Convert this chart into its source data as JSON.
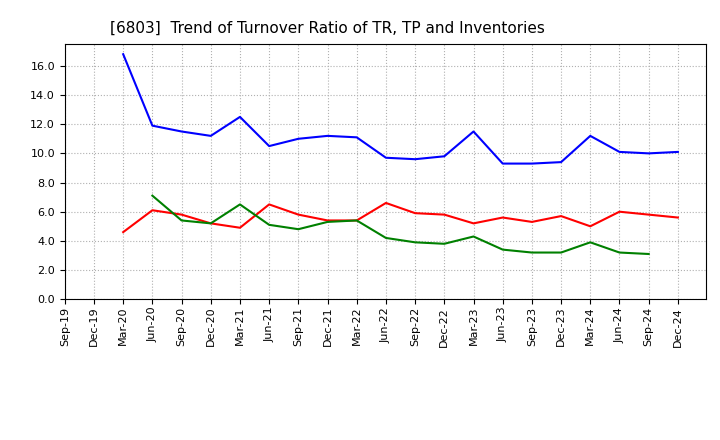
{
  "title": "[6803]  Trend of Turnover Ratio of TR, TP and Inventories",
  "xlabel_labels": [
    "Sep-19",
    "Dec-19",
    "Mar-20",
    "Jun-20",
    "Sep-20",
    "Dec-20",
    "Mar-21",
    "Jun-21",
    "Sep-21",
    "Dec-21",
    "Mar-22",
    "Jun-22",
    "Sep-22",
    "Dec-22",
    "Mar-23",
    "Jun-23",
    "Sep-23",
    "Dec-23",
    "Mar-24",
    "Jun-24",
    "Sep-24",
    "Dec-24"
  ],
  "ylim": [
    0.0,
    17.5
  ],
  "yticks": [
    0.0,
    2.0,
    4.0,
    6.0,
    8.0,
    10.0,
    12.0,
    14.0,
    16.0
  ],
  "trade_receivables": [
    null,
    null,
    4.6,
    6.1,
    5.8,
    5.2,
    4.9,
    6.5,
    5.8,
    5.4,
    5.4,
    6.6,
    5.9,
    5.8,
    5.2,
    5.6,
    5.3,
    5.7,
    5.0,
    6.0,
    5.8,
    5.6
  ],
  "trade_payables": [
    null,
    null,
    16.8,
    11.9,
    11.5,
    11.2,
    12.5,
    10.5,
    11.0,
    11.2,
    11.1,
    9.7,
    9.6,
    9.8,
    11.5,
    9.3,
    9.3,
    9.4,
    11.2,
    10.1,
    10.0,
    10.1
  ],
  "inventories": [
    null,
    null,
    null,
    7.1,
    5.4,
    5.2,
    6.5,
    5.1,
    4.8,
    5.3,
    5.4,
    4.2,
    3.9,
    3.8,
    4.3,
    3.4,
    3.2,
    3.2,
    3.9,
    3.2,
    3.1,
    null
  ],
  "tr_color": "#ff0000",
  "tp_color": "#0000ff",
  "inv_color": "#008000",
  "background_color": "#ffffff",
  "grid_color": "#b0b0b0",
  "title_fontsize": 11,
  "legend_fontsize": 9,
  "tick_fontsize": 8
}
